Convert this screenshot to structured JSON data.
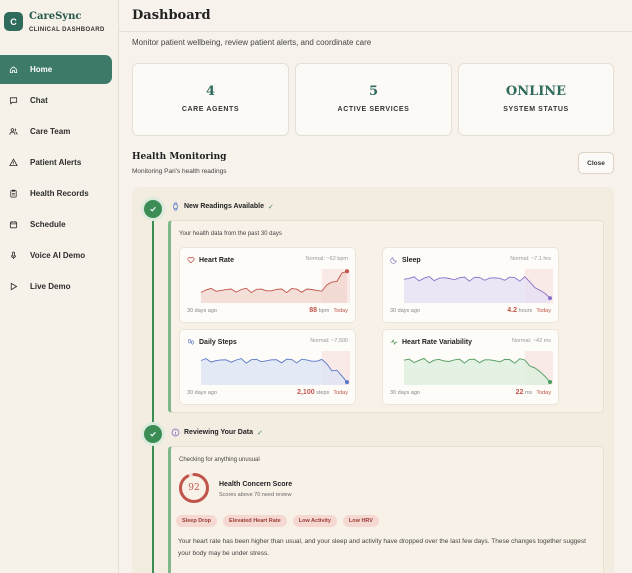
{
  "brand": {
    "logo_letter": "C",
    "name": "CareSync",
    "subtitle": "CLINICAL DASHBOARD"
  },
  "nav": [
    {
      "label": "Home",
      "icon": "home-icon",
      "active": true
    },
    {
      "label": "Chat",
      "icon": "chat-icon",
      "active": false
    },
    {
      "label": "Care Team",
      "icon": "people-icon",
      "active": false
    },
    {
      "label": "Patient Alerts",
      "icon": "alert-icon",
      "active": false
    },
    {
      "label": "Health Records",
      "icon": "clipboard-icon",
      "active": false
    },
    {
      "label": "Schedule",
      "icon": "calendar-icon",
      "active": false
    },
    {
      "label": "Voice AI Demo",
      "icon": "microphone-icon",
      "active": false
    },
    {
      "label": "Live Demo",
      "icon": "play-icon",
      "active": false
    }
  ],
  "header": {
    "title": "Dashboard",
    "description": "Monitor patient wellbeing, review patient alerts, and coordinate care"
  },
  "stats": [
    {
      "value": "4",
      "label": "CARE AGENTS"
    },
    {
      "value": "5",
      "label": "ACTIVE SERVICES"
    },
    {
      "value": "ONLINE",
      "label": "SYSTEM STATUS"
    }
  ],
  "health": {
    "title": "Health Monitoring",
    "subtitle": "Monitoring Pari's health readings",
    "close_label": "Close",
    "step1": {
      "title": "New Readings Available",
      "subtitle": "Your health data from the past 30 days",
      "metrics": [
        {
          "name": "Heart Rate",
          "normal": "Normal: ~62 bpm",
          "start": "30 days ago",
          "value": "88",
          "unit": "bpm",
          "end": "Today",
          "color": "#c0544a",
          "fill": "#f1d6d0",
          "trend": "up",
          "icon": "heart-icon"
        },
        {
          "name": "Sleep",
          "normal": "Normal: ~7.1 hrs",
          "start": "30 days ago",
          "value": "4.2",
          "unit": "hours",
          "end": "Today",
          "color": "#8c72c9",
          "fill": "#e6e0f4",
          "trend": "down",
          "icon": "moon-icon"
        },
        {
          "name": "Daily Steps",
          "normal": "Normal: ~7,500",
          "start": "30 days ago",
          "value": "2,100",
          "unit": "steps",
          "end": "Today",
          "color": "#5a78c8",
          "fill": "#dde4f5",
          "trend": "down",
          "icon": "footsteps-icon"
        },
        {
          "name": "Heart Rate Variability",
          "normal": "Normal: ~42 ms",
          "start": "30 days ago",
          "value": "22",
          "unit": "ms",
          "end": "Today",
          "color": "#4c9a5c",
          "fill": "#dcefdc",
          "trend": "down",
          "icon": "pulse-icon"
        }
      ]
    },
    "step2": {
      "title": "Reviewing Your Data",
      "subtitle": "Checking for anything unusual",
      "score": "92",
      "score_title": "Health Concern Score",
      "score_sub": "Scores above 70 need review",
      "tags": [
        "Sleep Drop",
        "Elevated Heart Rate",
        "Low Activity",
        "Low HRV"
      ],
      "explanation": "Your heart rate has been higher than usual, and your sleep and activity have dropped over the last few days. These changes together suggest your body may be under stress."
    }
  },
  "colors": {
    "accent": "#2e6b5c",
    "active_nav": "#3e7a6a",
    "timeline": "#3c8d55",
    "alert": "#c0544a"
  }
}
